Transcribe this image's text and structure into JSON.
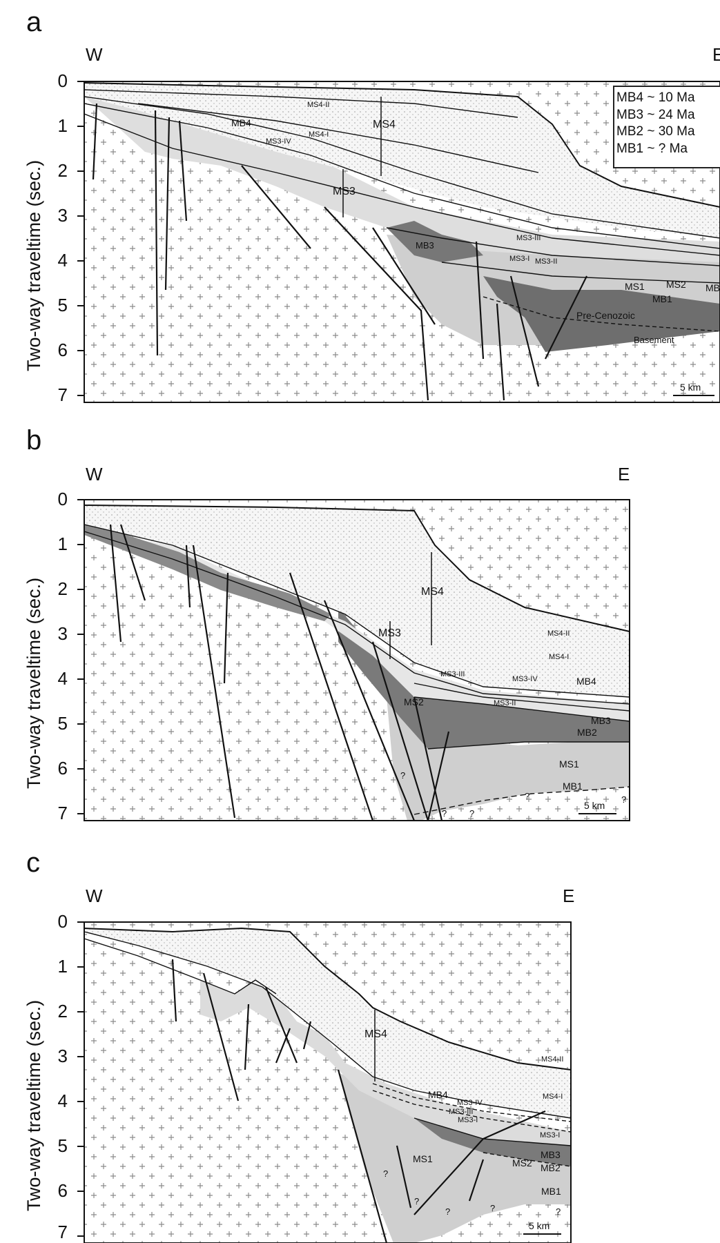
{
  "panels": [
    {
      "letter": "a",
      "west": "W",
      "east": "E",
      "y_axis_label": "Two-way traveltime (sec.)",
      "y_ticks": [
        "0",
        "1",
        "2",
        "3",
        "4",
        "5",
        "6",
        "7"
      ],
      "labels": [
        "MS4-II",
        "MS4",
        "MB4",
        "MS4-I",
        "MS3-IV",
        "MS3",
        "MB3",
        "MS3-III",
        "MS3-I",
        "MS3-II",
        "MS1",
        "MS2",
        "MB",
        "MB1",
        "Pre-Cenozoic",
        "Basement"
      ],
      "scale_bar": "5 km",
      "legend": [
        "MB4 ~ 10 Ma",
        "MB3 ~ 24 Ma",
        "MB2 ~ 30 Ma",
        "MB1 ~ ? Ma"
      ]
    },
    {
      "letter": "b",
      "west": "W",
      "east": "E",
      "y_axis_label": "Two-way traveltime (sec.)",
      "y_ticks": [
        "0",
        "1",
        "2",
        "3",
        "4",
        "5",
        "6",
        "7"
      ],
      "labels": [
        "MS4",
        "MS3",
        "MS4-II",
        "MS4-I",
        "MS3-III",
        "MS3-IV",
        "MB4",
        "MS3-II",
        "MS2",
        "MB3",
        "MB2",
        "MS1",
        "MB1",
        "?"
      ],
      "scale_bar": "5 km"
    },
    {
      "letter": "c",
      "west": "W",
      "east": "E",
      "y_axis_label": "Two-way traveltime (sec.)",
      "y_ticks": [
        "0",
        "1",
        "2",
        "3",
        "4",
        "5",
        "6",
        "7"
      ],
      "labels": [
        "MS4",
        "MS4-II",
        "MS4-I",
        "MB4",
        "MS3-IV",
        "MS3-III",
        "MS3-I",
        "MS3-I",
        "MS1",
        "MS2",
        "MB3",
        "MB2",
        "MB1",
        "?"
      ],
      "scale_bar": "5 km"
    }
  ],
  "colors": {
    "basement_fill": "#ffffff",
    "basement_cross": "#888888",
    "ms4_stipple": "#f2f2f2",
    "ms3_fill": "#eeeeee",
    "ms2_fill": "#7a7a7a",
    "ms1_fill": "#cfcfcf",
    "line": "#111111"
  }
}
